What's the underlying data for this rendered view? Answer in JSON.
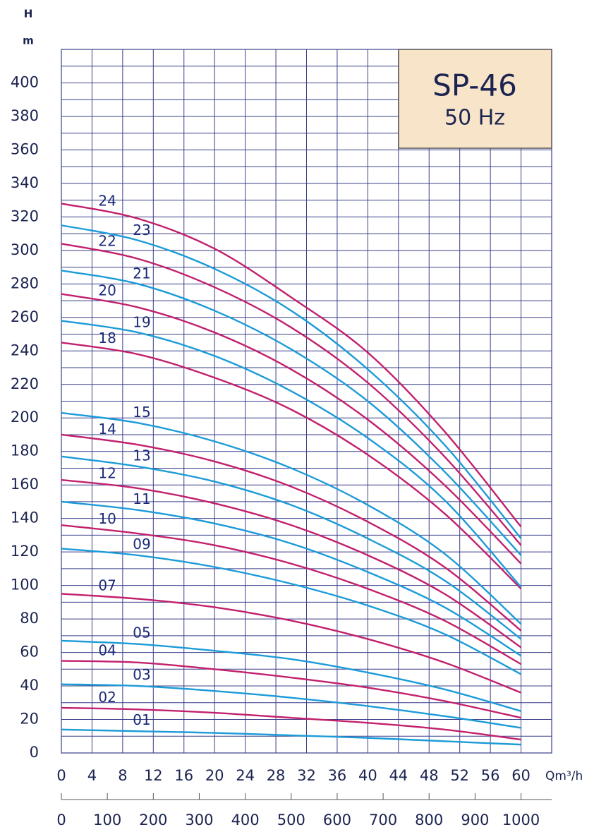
{
  "chart_data": {
    "type": "line",
    "title": "SP-46",
    "subtitle": "50 Hz",
    "ylabel": "H",
    "ylabel_unit": "m",
    "xlabel": "Qm³/h",
    "x": [
      0,
      10,
      20,
      30,
      40,
      50,
      60
    ],
    "xlim": [
      0,
      64
    ],
    "xticks": [
      0,
      4,
      8,
      12,
      16,
      20,
      24,
      28,
      32,
      36,
      40,
      44,
      48,
      52,
      56,
      60
    ],
    "ylim": [
      0,
      420
    ],
    "yticks": [
      0,
      20,
      40,
      60,
      80,
      100,
      120,
      140,
      160,
      180,
      200,
      220,
      240,
      260,
      280,
      300,
      320,
      340,
      360,
      380,
      400
    ],
    "yminorticks": [
      10,
      30,
      50,
      70,
      90,
      110,
      130,
      150,
      170,
      190,
      210,
      230,
      250,
      270,
      290,
      310,
      330,
      350,
      370,
      390,
      410
    ],
    "x2lim": [
      0,
      1066.7
    ],
    "x2ticks": [
      0,
      100,
      200,
      300,
      400,
      500,
      600,
      700,
      800,
      900,
      1000
    ],
    "grid": true,
    "series": [
      {
        "name": "01",
        "color": "#1c9bd8",
        "values": [
          14,
          13,
          12,
          10.5,
          9,
          7,
          5
        ]
      },
      {
        "name": "02",
        "color": "#c2206c",
        "values": [
          27,
          26,
          24,
          21,
          18,
          14,
          8
        ]
      },
      {
        "name": "03",
        "color": "#1c9bd8",
        "values": [
          41,
          40,
          37,
          33,
          28,
          22,
          15
        ]
      },
      {
        "name": "04",
        "color": "#c2206c",
        "values": [
          55,
          54,
          50,
          45,
          39,
          31,
          21
        ]
      },
      {
        "name": "05",
        "color": "#1c9bd8",
        "values": [
          67,
          65,
          61,
          56,
          48,
          38,
          25
        ]
      },
      {
        "name": "07",
        "color": "#c2206c",
        "values": [
          95,
          92,
          87,
          79,
          68,
          54,
          36
        ]
      },
      {
        "name": "09",
        "color": "#1c9bd8",
        "values": [
          122,
          118,
          111,
          101,
          88,
          71,
          47
        ]
      },
      {
        "name": "10",
        "color": "#c2206c",
        "values": [
          136,
          131,
          124,
          113,
          98,
          79,
          53
        ]
      },
      {
        "name": "11",
        "color": "#1c9bd8",
        "values": [
          150,
          145,
          137,
          125,
          108,
          87,
          58
        ]
      },
      {
        "name": "12",
        "color": "#c2206c",
        "values": [
          163,
          158,
          149,
          136,
          118,
          95,
          63
        ]
      },
      {
        "name": "13",
        "color": "#1c9bd8",
        "values": [
          177,
          171,
          162,
          148,
          128,
          103,
          68
        ]
      },
      {
        "name": "14",
        "color": "#c2206c",
        "values": [
          190,
          184,
          174,
          159,
          138,
          111,
          73
        ]
      },
      {
        "name": "15",
        "color": "#1c9bd8",
        "values": [
          203,
          197,
          186,
          170,
          148,
          119,
          77
        ]
      },
      {
        "name": "18",
        "color": "#c2206c",
        "values": [
          245,
          238,
          224,
          205,
          178,
          143,
          98
        ]
      },
      {
        "name": "19",
        "color": "#1c9bd8",
        "values": [
          258,
          251,
          237,
          216,
          188,
          151,
          99
        ]
      },
      {
        "name": "20",
        "color": "#c2206c",
        "values": [
          274,
          266,
          251,
          229,
          199,
          160,
          113
        ]
      },
      {
        "name": "21",
        "color": "#1c9bd8",
        "values": [
          288,
          280,
          264,
          241,
          210,
          168,
          118
        ]
      },
      {
        "name": "22",
        "color": "#c2206c",
        "values": [
          304,
          295,
          278,
          254,
          221,
          177,
          124
        ]
      },
      {
        "name": "23",
        "color": "#1c9bd8",
        "values": [
          315,
          306,
          289,
          264,
          229,
          184,
          128
        ]
      },
      {
        "name": "24",
        "color": "#c2206c",
        "values": [
          328,
          319,
          301,
          272,
          239,
          192,
          135
        ]
      }
    ]
  }
}
